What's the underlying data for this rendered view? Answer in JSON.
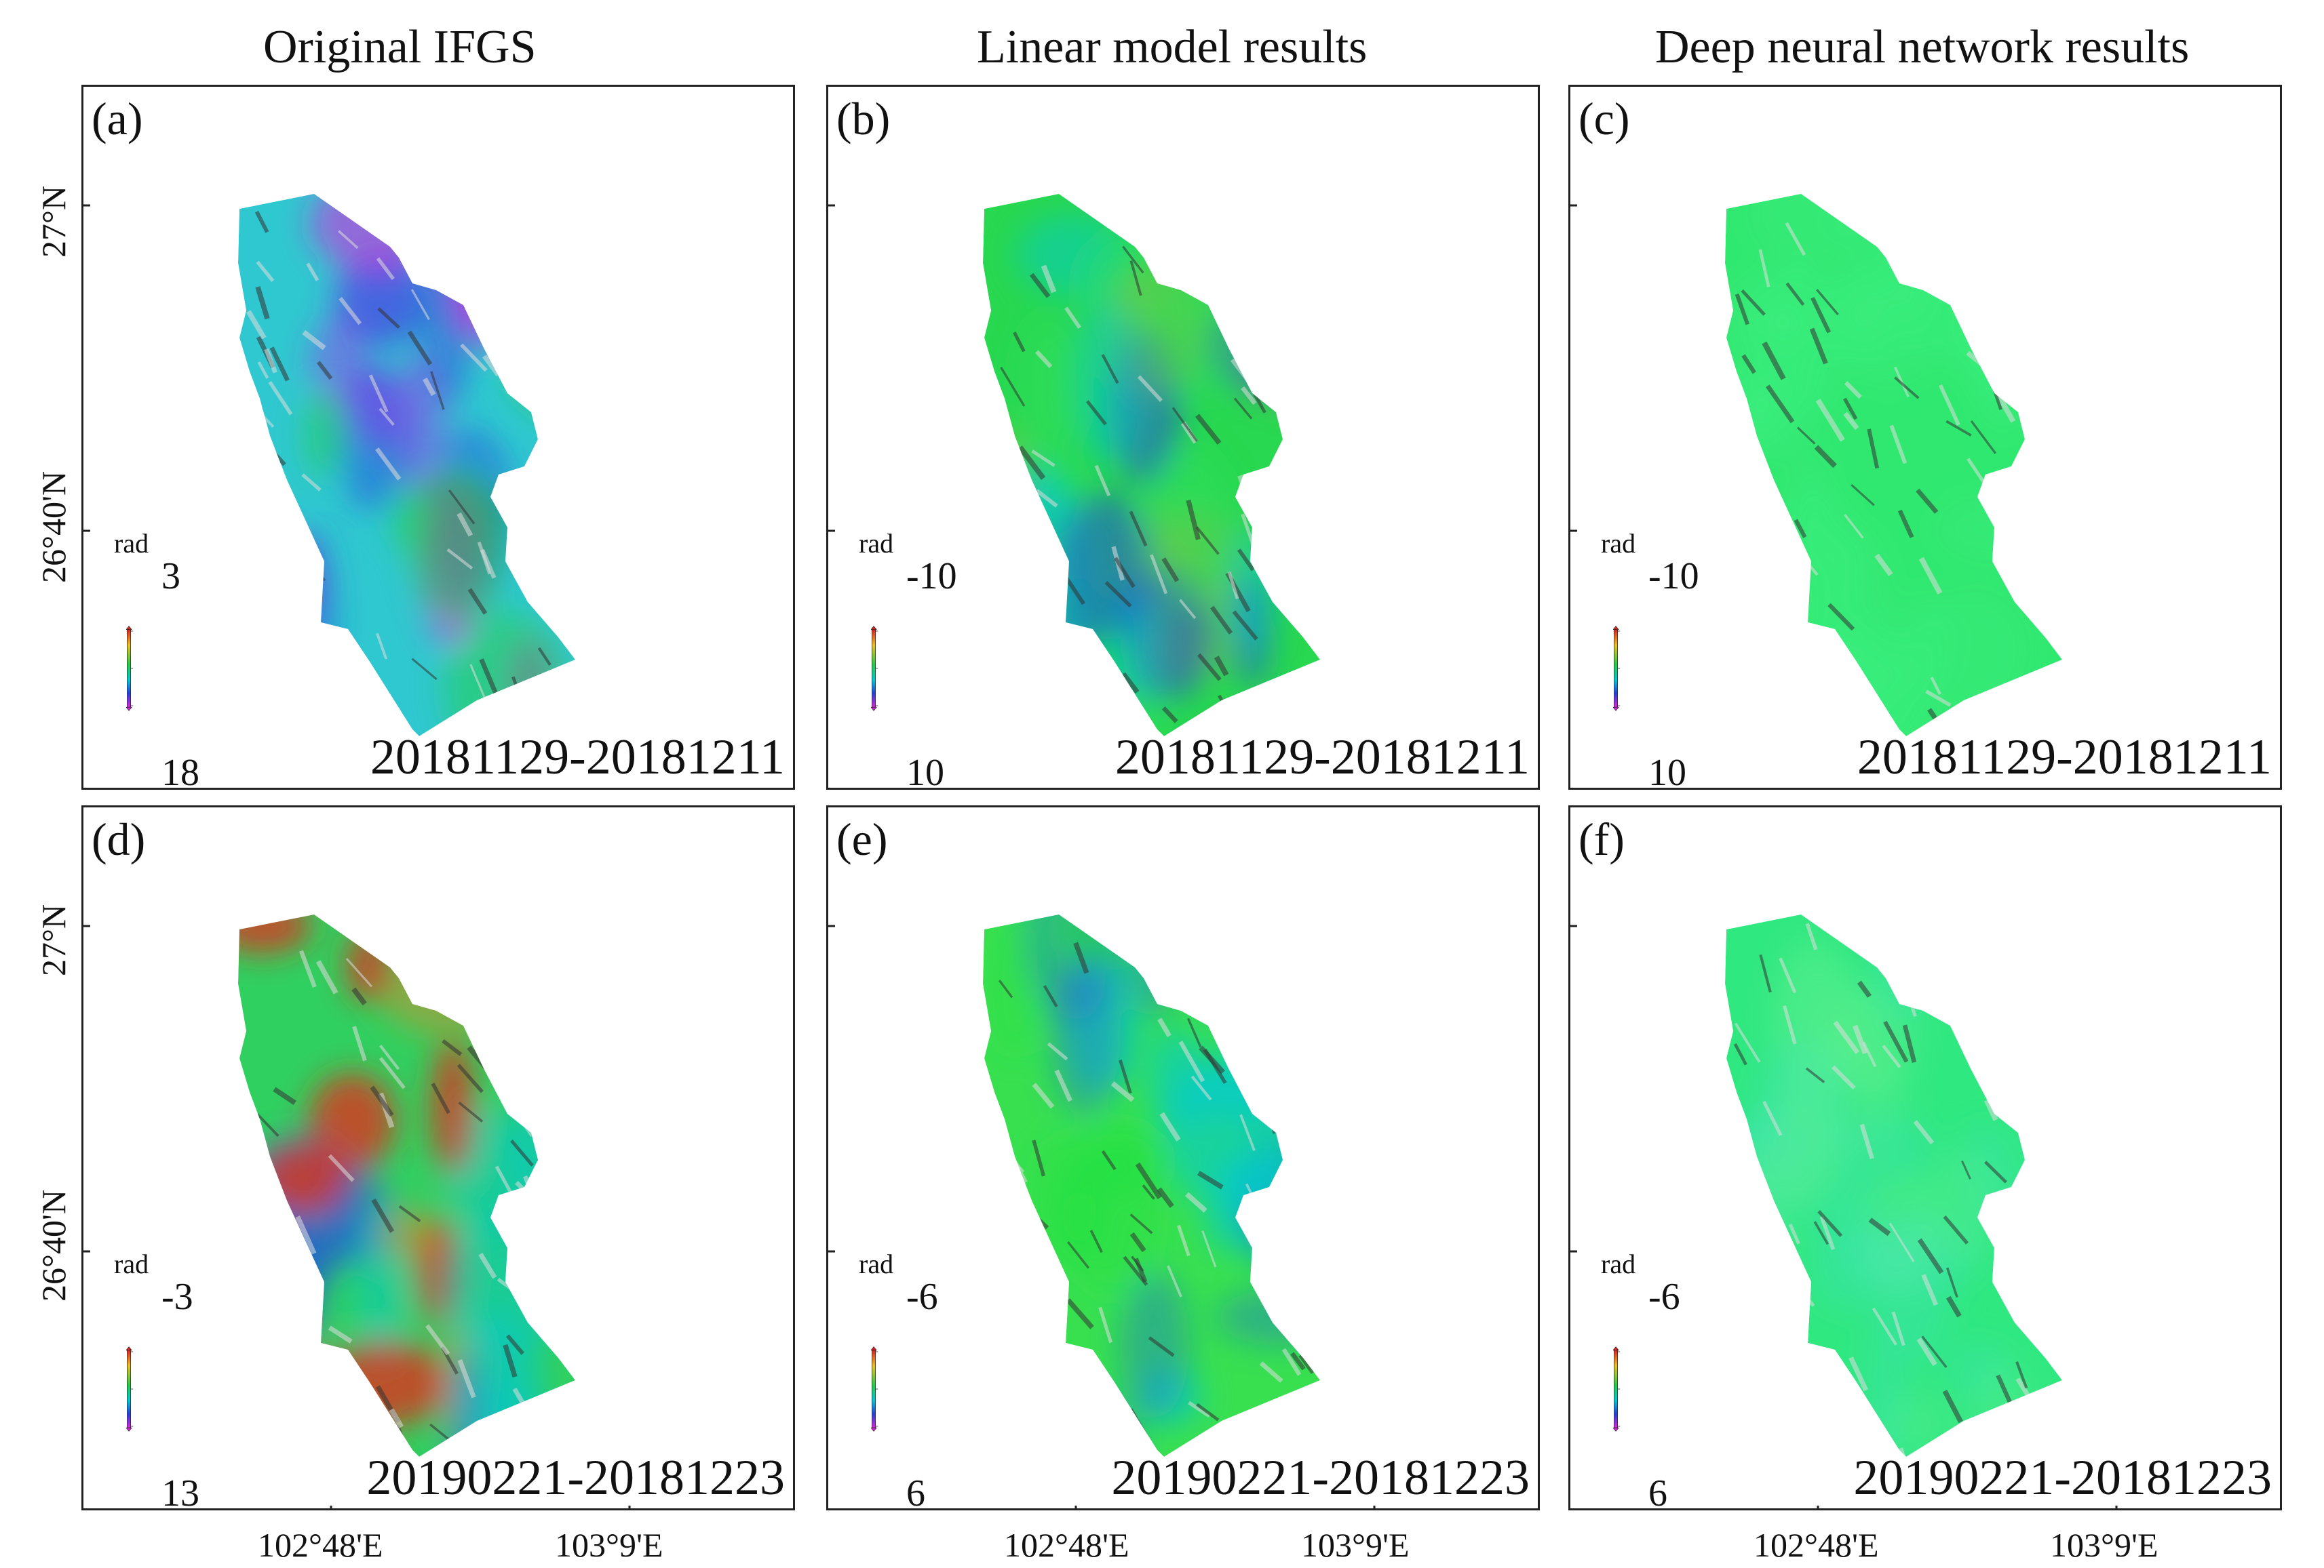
{
  "column_titles": [
    "Original IFGS",
    "Linear model results",
    "Deep neural network  results"
  ],
  "unit": "rad",
  "panels": [
    {
      "label": "(a)",
      "date": "20181129-20181211",
      "cbar_top": "3",
      "cbar_bottom": "18",
      "scheme": "a"
    },
    {
      "label": "(b)",
      "date": "20181129-20181211",
      "cbar_top": "-10",
      "cbar_bottom": "10",
      "scheme": "b"
    },
    {
      "label": "(c)",
      "date": "20181129-20181211",
      "cbar_top": "-10",
      "cbar_bottom": "10",
      "scheme": "c"
    },
    {
      "label": "(d)",
      "date": "20190221-20181223",
      "cbar_top": "-3",
      "cbar_bottom": "13",
      "scheme": "d"
    },
    {
      "label": "(e)",
      "date": "20190221-20181223",
      "cbar_top": "-6",
      "cbar_bottom": "6",
      "scheme": "e"
    },
    {
      "label": "(f)",
      "date": "20190221-20181223",
      "cbar_top": "-6",
      "cbar_bottom": "6",
      "scheme": "f"
    }
  ],
  "lat_labels": [
    "27°N",
    "26°40'N"
  ],
  "lon_labels": [
    "102°48'E",
    "103°9'E"
  ],
  "colors": {
    "red": "#e02020",
    "green": "#20d040",
    "cyan": "#00c8d8",
    "blue": "#2040e0",
    "magenta": "#e020e0"
  }
}
